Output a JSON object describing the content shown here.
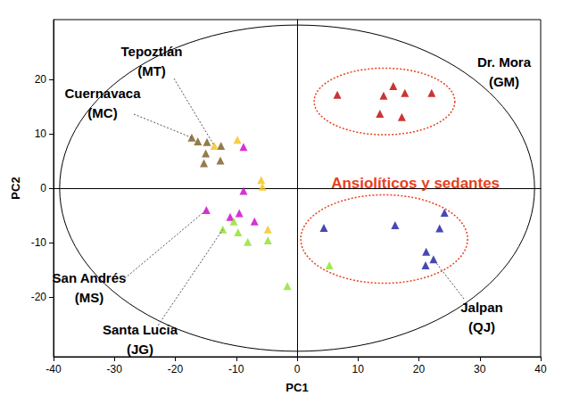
{
  "chart_data": {
    "type": "scatter",
    "x_label": "PC1",
    "y_label": "PC2",
    "xlim": [
      -40,
      40
    ],
    "xticks": [
      -40,
      -30,
      -20,
      -10,
      0,
      10,
      20,
      30,
      40
    ],
    "ylim": [
      -31,
      31
    ],
    "yticks": [
      -20,
      -10,
      0,
      10,
      20
    ],
    "marker": "triangle",
    "ellipse": {
      "center": [
        0,
        0
      ],
      "radii": [
        39,
        30
      ]
    },
    "series": [
      {
        "name": "Cuernavaca (MC)",
        "color": "#7a5a1e",
        "x": [
          -17.3,
          -16.3,
          -14.8,
          -12.5,
          -15.0,
          -15.3,
          -12.6
        ],
        "values": [
          9.3,
          8.6,
          8.5,
          7.8,
          6.4,
          4.6,
          5.1
        ]
      },
      {
        "name": "Tepoztlán (MT)",
        "color": "#f2c418",
        "x": [
          -13.6,
          -9.8,
          -5.9,
          -5.7,
          -4.8
        ],
        "values": [
          7.8,
          8.9,
          1.5,
          0.3,
          -7.6
        ]
      },
      {
        "name": "San Andrés (MS)",
        "color": "#cc00cc",
        "x": [
          -8.8,
          -8.8,
          -14.9,
          -11.0,
          -9.5,
          -7.0
        ],
        "values": [
          7.6,
          -0.5,
          -4.0,
          -5.3,
          -4.6,
          -6.1
        ]
      },
      {
        "name": "Santa Lucia (JG)",
        "color": "#8ee02a",
        "x": [
          -12.2,
          -10.4,
          -9.7,
          -8.1,
          -4.8,
          -1.6,
          5.3
        ],
        "values": [
          -7.6,
          -6.1,
          -8.1,
          -9.9,
          -9.6,
          -18.0,
          -14.2
        ]
      },
      {
        "name": "Dr. Mora (GM)",
        "color": "#c00000",
        "x": [
          6.6,
          14.2,
          15.8,
          17.7,
          22.1,
          13.6,
          17.2
        ],
        "values": [
          17.2,
          17.0,
          18.8,
          17.5,
          17.5,
          13.7,
          13.1
        ]
      },
      {
        "name": "Jalpan (QJ)",
        "color": "#1a1aa0",
        "x": [
          4.4,
          16.1,
          24.2,
          23.4,
          21.2,
          22.4,
          21.1
        ],
        "values": [
          -7.3,
          -6.8,
          -4.5,
          -7.4,
          -11.7,
          -13.1,
          -14.2
        ]
      }
    ],
    "annotations": [
      {
        "text": "Ansiolíticos y sedantes",
        "color": "#e8401c",
        "groups": [
          "Dr. Mora (GM)",
          "Jalpan (QJ)"
        ]
      }
    ]
  }
}
